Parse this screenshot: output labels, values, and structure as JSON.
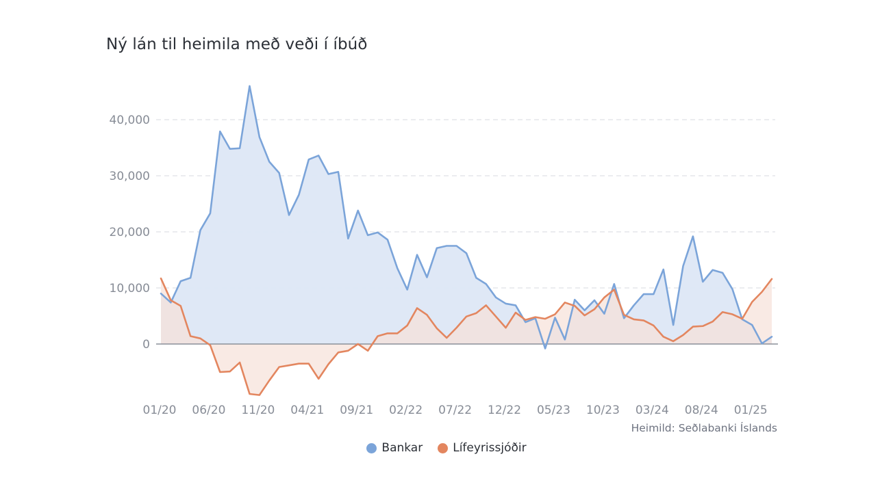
{
  "chart_data": {
    "type": "area",
    "title": "Ný lán til heimila með veði í íbúð",
    "source": "Heimild: Seðlabanki Íslands",
    "xlabel": "",
    "ylabel": "",
    "ylim": [
      -10000,
      50000
    ],
    "y_ticks": [
      0,
      10000,
      20000,
      30000,
      40000
    ],
    "y_tick_labels": [
      "0",
      "10,000",
      "20,000",
      "30,000",
      "40,000"
    ],
    "x_tick_labels": [
      "01/20",
      "06/20",
      "11/20",
      "04/21",
      "09/21",
      "02/22",
      "07/22",
      "12/22",
      "05/23",
      "10/23",
      "03/24",
      "08/24",
      "01/25"
    ],
    "x_tick_indices": [
      0,
      5,
      10,
      15,
      20,
      25,
      30,
      35,
      40,
      45,
      50,
      55,
      60
    ],
    "grid": true,
    "legend_position": "bottom",
    "colors": {
      "bankar": "#7ba4d9",
      "lifeyrissjodir": "#e3865f"
    },
    "series": [
      {
        "name": "Bankar",
        "color": "#7ba4d9",
        "fill": "#dde7f6",
        "values": [
          9000,
          7400,
          11200,
          11800,
          20300,
          23300,
          37900,
          34800,
          34900,
          46000,
          36900,
          32500,
          30500,
          23000,
          26600,
          32900,
          33600,
          30300,
          30700,
          18800,
          23800,
          19400,
          19900,
          18600,
          13500,
          9700,
          15900,
          11900,
          17100,
          17500,
          17500,
          16200,
          11800,
          10700,
          8300,
          7200,
          6900,
          3900,
          4600,
          -800,
          4700,
          800,
          7900,
          6000,
          7800,
          5400,
          10700,
          4600,
          6900,
          8900,
          8900,
          13300,
          3400,
          13900,
          19200,
          11100,
          13200,
          12700,
          9800,
          4400,
          3400,
          100,
          1300
        ]
      },
      {
        "name": "Lífeyrissjóðir",
        "color": "#e3865f",
        "fill": "#f7e1d8",
        "values": [
          11700,
          7800,
          6800,
          1400,
          1000,
          -200,
          -5000,
          -4900,
          -3300,
          -8900,
          -9100,
          -6500,
          -4100,
          -3800,
          -3500,
          -3500,
          -6200,
          -3600,
          -1500,
          -1200,
          0,
          -1200,
          1400,
          1900,
          1900,
          3300,
          6400,
          5200,
          2800,
          1100,
          2900,
          4900,
          5500,
          6900,
          4900,
          2900,
          5600,
          4300,
          4800,
          4500,
          5300,
          7400,
          6800,
          5100,
          6200,
          8300,
          9700,
          5200,
          4400,
          4200,
          3300,
          1300,
          500,
          1600,
          3100,
          3200,
          4000,
          5700,
          5300,
          4500,
          7500,
          9300,
          11600
        ]
      }
    ]
  }
}
